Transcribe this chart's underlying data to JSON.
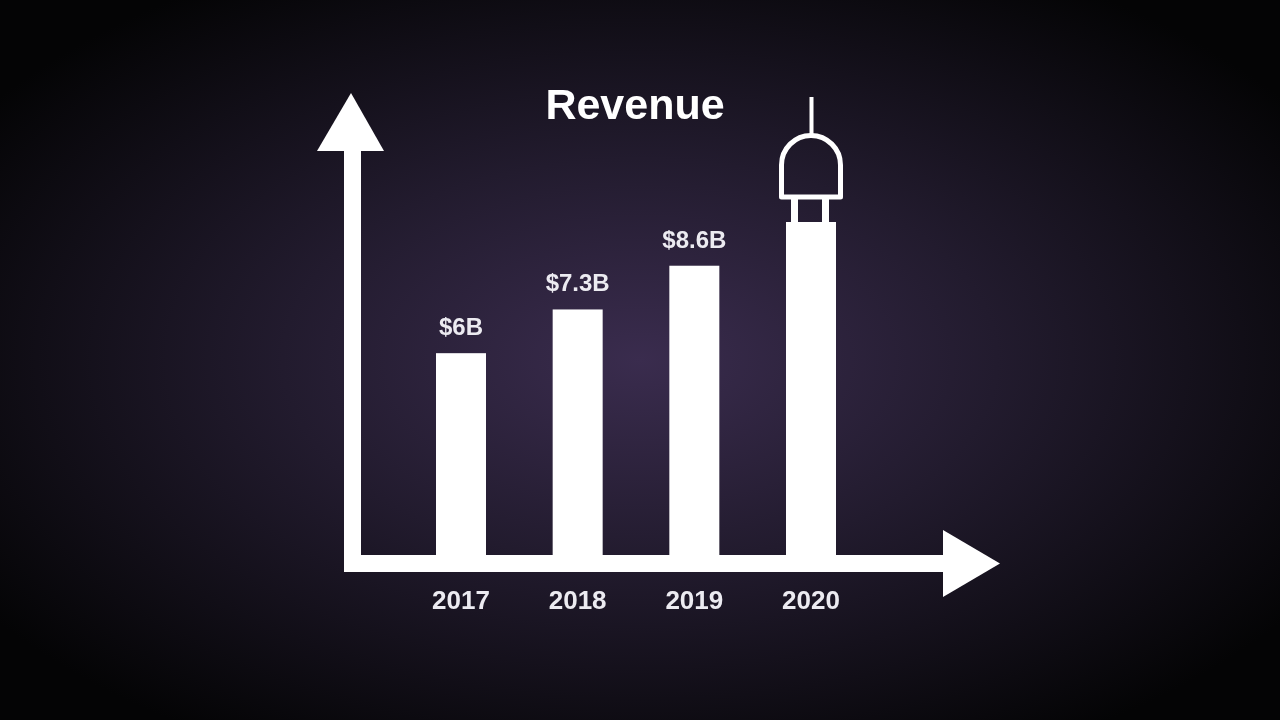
{
  "chart_data": {
    "type": "bar",
    "title": "Revenue",
    "categories": [
      "2017",
      "2018",
      "2019",
      "2020"
    ],
    "values": [
      6,
      7.3,
      8.6,
      9.9
    ],
    "value_labels": [
      "$6B",
      "$7.3B",
      "$8.6B",
      null
    ],
    "color": "#ffffff"
  }
}
